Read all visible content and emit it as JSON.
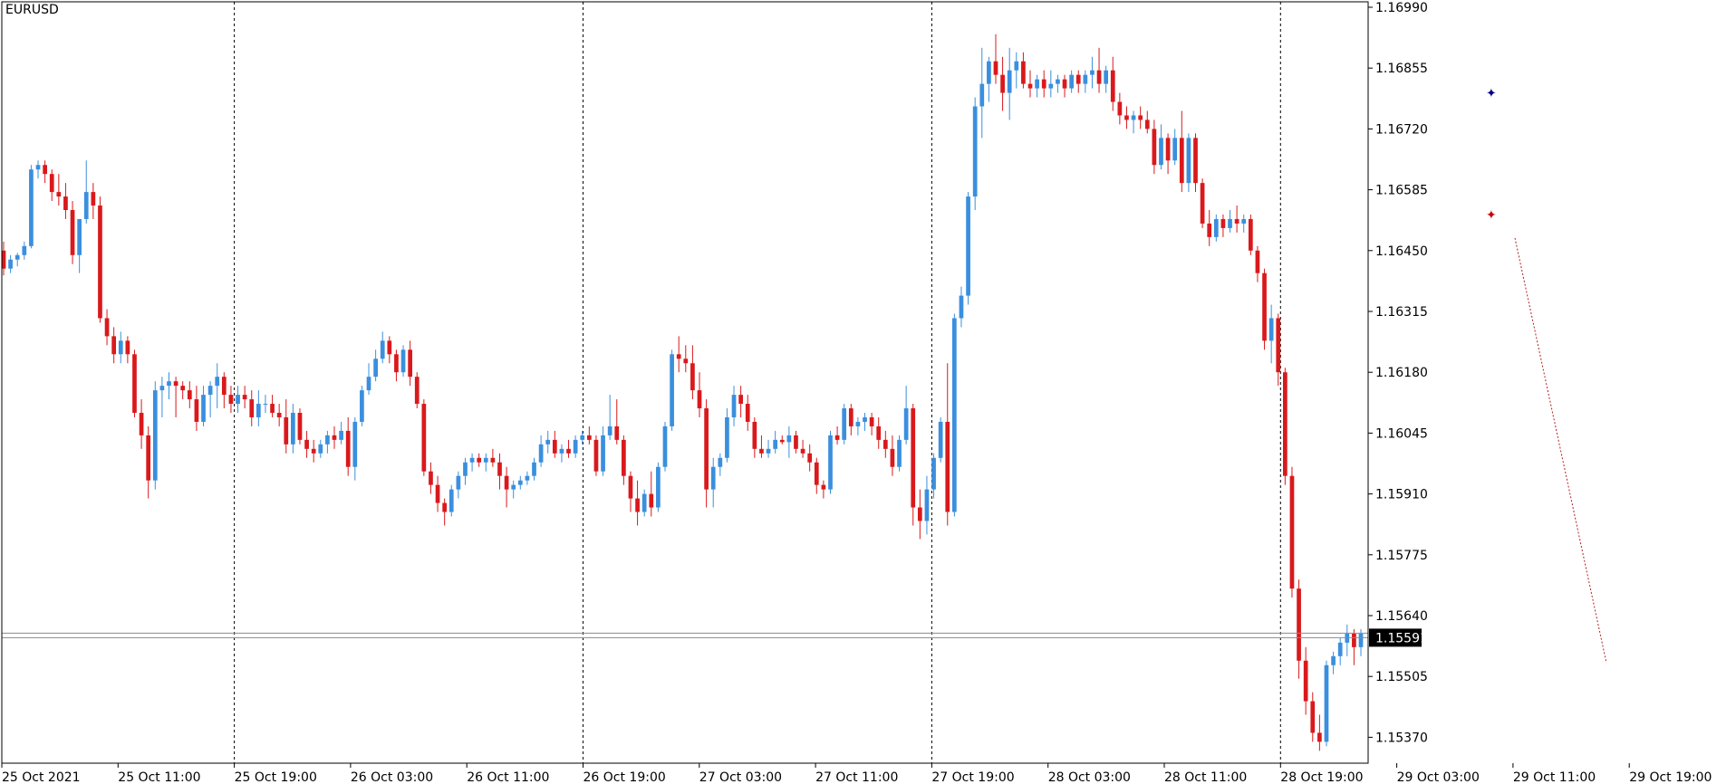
{
  "symbol": "EURUSD",
  "chart_data": {
    "type": "candlestick",
    "ylim": [
      1.153,
      1.1705
    ],
    "y_ticks": [
      "1.16990",
      "1.16855",
      "1.16720",
      "1.16585",
      "1.16450",
      "1.16315",
      "1.16180",
      "1.16045",
      "1.15910",
      "1.15775",
      "1.15640",
      "1.15505",
      "1.15370"
    ],
    "x_tick_labels": [
      "25 Oct 2021",
      "25 Oct 11:00",
      "25 Oct 19:00",
      "26 Oct 03:00",
      "26 Oct 11:00",
      "26 Oct 19:00",
      "27 Oct 03:00",
      "27 Oct 11:00",
      "27 Oct 19:00",
      "28 Oct 03:00",
      "28 Oct 11:00",
      "28 Oct 19:00",
      "29 Oct 03:00",
      "29 Oct 11:00",
      "29 Oct 19:00"
    ],
    "day_separators_after_label_index": [
      2,
      5,
      8,
      11
    ],
    "current_price": "1.15591",
    "bid_ask_lines": [
      1.15601,
      1.15591
    ],
    "colors": {
      "bull": "#3a8fde",
      "bear": "#d9191c",
      "grid": "#000000",
      "price_tag_bg": "#000000",
      "price_tag_fg": "#ffffff",
      "arrow_buy": "#000080",
      "arrow_sell": "#cc0000",
      "trade_line": "#b22222"
    },
    "trade": {
      "entry_price": 1.16478,
      "exit_price": 1.15535
    },
    "candles_ohlc": [
      [
        1.1645,
        1.1647,
        1.16395,
        1.1641
      ],
      [
        1.1641,
        1.1644,
        1.164,
        1.1643
      ],
      [
        1.1643,
        1.16445,
        1.16415,
        1.1644
      ],
      [
        1.1644,
        1.1647,
        1.1643,
        1.1646
      ],
      [
        1.1646,
        1.1664,
        1.16455,
        1.1663
      ],
      [
        1.1663,
        1.1665,
        1.1661,
        1.1664
      ],
      [
        1.1664,
        1.1665,
        1.166,
        1.1662
      ],
      [
        1.1662,
        1.1663,
        1.1656,
        1.1658
      ],
      [
        1.1658,
        1.1662,
        1.1655,
        1.1657
      ],
      [
        1.1657,
        1.166,
        1.1652,
        1.1654
      ],
      [
        1.1654,
        1.1656,
        1.1642,
        1.1644
      ],
      [
        1.1644,
        1.165,
        1.164,
        1.1652
      ],
      [
        1.1652,
        1.1665,
        1.1651,
        1.1658
      ],
      [
        1.1658,
        1.166,
        1.1652,
        1.1655
      ],
      [
        1.1655,
        1.1657,
        1.1629,
        1.163
      ],
      [
        1.163,
        1.1632,
        1.1624,
        1.1626
      ],
      [
        1.1626,
        1.1628,
        1.162,
        1.1622
      ],
      [
        1.1622,
        1.1627,
        1.162,
        1.1625
      ],
      [
        1.1625,
        1.1626,
        1.162,
        1.1622
      ],
      [
        1.1622,
        1.1623,
        1.1608,
        1.1609
      ],
      [
        1.1609,
        1.1612,
        1.1601,
        1.1604
      ],
      [
        1.1604,
        1.1606,
        1.159,
        1.1594
      ],
      [
        1.1594,
        1.1616,
        1.1592,
        1.1614
      ],
      [
        1.1614,
        1.1617,
        1.1608,
        1.1615
      ],
      [
        1.1615,
        1.1618,
        1.1612,
        1.1616
      ],
      [
        1.1616,
        1.1617,
        1.1608,
        1.1615
      ],
      [
        1.1615,
        1.1616,
        1.1612,
        1.1614
      ],
      [
        1.1614,
        1.1616,
        1.161,
        1.1612
      ],
      [
        1.1612,
        1.1615,
        1.1605,
        1.1607
      ],
      [
        1.1607,
        1.1615,
        1.1606,
        1.1613
      ],
      [
        1.1613,
        1.1616,
        1.1608,
        1.1615
      ],
      [
        1.1615,
        1.162,
        1.161,
        1.1617
      ],
      [
        1.1617,
        1.1618,
        1.161,
        1.1613
      ],
      [
        1.1613,
        1.1615,
        1.1609,
        1.1611
      ],
      [
        1.1611,
        1.1615,
        1.1609,
        1.1613
      ],
      [
        1.1613,
        1.1615,
        1.161,
        1.1612
      ],
      [
        1.1612,
        1.1614,
        1.1606,
        1.1608
      ],
      [
        1.1608,
        1.1614,
        1.1606,
        1.1611
      ],
      [
        1.1611,
        1.1613,
        1.1609,
        1.1611
      ],
      [
        1.1611,
        1.1613,
        1.1608,
        1.1609
      ],
      [
        1.1609,
        1.1611,
        1.1606,
        1.1608
      ],
      [
        1.1608,
        1.1612,
        1.16,
        1.1602
      ],
      [
        1.1602,
        1.1611,
        1.16,
        1.1609
      ],
      [
        1.1609,
        1.161,
        1.1602,
        1.1603
      ],
      [
        1.1603,
        1.1605,
        1.1599,
        1.1601
      ],
      [
        1.1601,
        1.1603,
        1.1598,
        1.16
      ],
      [
        1.16,
        1.1603,
        1.1599,
        1.1602
      ],
      [
        1.1602,
        1.1605,
        1.16,
        1.1604
      ],
      [
        1.1604,
        1.1606,
        1.1601,
        1.1603
      ],
      [
        1.1603,
        1.1607,
        1.1602,
        1.1605
      ],
      [
        1.1605,
        1.1608,
        1.1595,
        1.1597
      ],
      [
        1.1597,
        1.1608,
        1.1594,
        1.1607
      ],
      [
        1.1607,
        1.1615,
        1.1606,
        1.1614
      ],
      [
        1.1614,
        1.162,
        1.1613,
        1.1617
      ],
      [
        1.1617,
        1.1623,
        1.1616,
        1.1621
      ],
      [
        1.1621,
        1.1627,
        1.162,
        1.1625
      ],
      [
        1.1625,
        1.1626,
        1.162,
        1.1622
      ],
      [
        1.1622,
        1.1623,
        1.1616,
        1.1618
      ],
      [
        1.1618,
        1.1624,
        1.1617,
        1.1623
      ],
      [
        1.1623,
        1.1625,
        1.1615,
        1.1617
      ],
      [
        1.1617,
        1.1618,
        1.161,
        1.1611
      ],
      [
        1.1611,
        1.1612,
        1.1595,
        1.1596
      ],
      [
        1.1596,
        1.1598,
        1.1591,
        1.1593
      ],
      [
        1.1593,
        1.1595,
        1.1587,
        1.1589
      ],
      [
        1.1589,
        1.159,
        1.1584,
        1.1587
      ],
      [
        1.1587,
        1.1593,
        1.1586,
        1.1592
      ],
      [
        1.1592,
        1.1596,
        1.159,
        1.1595
      ],
      [
        1.1595,
        1.1599,
        1.1593,
        1.1598
      ],
      [
        1.1598,
        1.16,
        1.1596,
        1.1599
      ],
      [
        1.1599,
        1.16,
        1.1597,
        1.1598
      ],
      [
        1.1598,
        1.16,
        1.1596,
        1.1599
      ],
      [
        1.1599,
        1.1601,
        1.1597,
        1.1598
      ],
      [
        1.1598,
        1.16,
        1.1592,
        1.1595
      ],
      [
        1.1595,
        1.1597,
        1.1588,
        1.1592
      ],
      [
        1.1592,
        1.1594,
        1.159,
        1.1593
      ],
      [
        1.1593,
        1.1595,
        1.1592,
        1.1594
      ],
      [
        1.1594,
        1.1596,
        1.1593,
        1.1595
      ],
      [
        1.1595,
        1.1599,
        1.1594,
        1.1598
      ],
      [
        1.1598,
        1.1604,
        1.1597,
        1.1602
      ],
      [
        1.1602,
        1.1605,
        1.16,
        1.1603
      ],
      [
        1.1603,
        1.1605,
        1.1599,
        1.16
      ],
      [
        1.16,
        1.1602,
        1.1598,
        1.1601
      ],
      [
        1.1601,
        1.1603,
        1.1599,
        1.16
      ],
      [
        1.16,
        1.1604,
        1.1599,
        1.1603
      ],
      [
        1.1603,
        1.1605,
        1.1602,
        1.1604
      ],
      [
        1.1604,
        1.1606,
        1.1602,
        1.1603
      ],
      [
        1.1603,
        1.1604,
        1.1595,
        1.1596
      ],
      [
        1.1596,
        1.1606,
        1.1595,
        1.1604
      ],
      [
        1.1604,
        1.1613,
        1.1603,
        1.1606
      ],
      [
        1.1606,
        1.1612,
        1.1602,
        1.1603
      ],
      [
        1.1603,
        1.1604,
        1.1593,
        1.1595
      ],
      [
        1.1595,
        1.1596,
        1.1587,
        1.159
      ],
      [
        1.159,
        1.1594,
        1.1584,
        1.1587
      ],
      [
        1.1587,
        1.1592,
        1.1586,
        1.1591
      ],
      [
        1.1591,
        1.1596,
        1.1586,
        1.1588
      ],
      [
        1.1588,
        1.1598,
        1.1587,
        1.1597
      ],
      [
        1.1597,
        1.1607,
        1.1596,
        1.1606
      ],
      [
        1.1606,
        1.1623,
        1.1605,
        1.1622
      ],
      [
        1.1622,
        1.1626,
        1.1618,
        1.1621
      ],
      [
        1.1621,
        1.1624,
        1.1618,
        1.162
      ],
      [
        1.162,
        1.1624,
        1.1612,
        1.1614
      ],
      [
        1.1614,
        1.1618,
        1.1608,
        1.161
      ],
      [
        1.161,
        1.1612,
        1.1588,
        1.1592
      ],
      [
        1.1592,
        1.1599,
        1.1588,
        1.1597
      ],
      [
        1.1597,
        1.16,
        1.1595,
        1.1599
      ],
      [
        1.1599,
        1.161,
        1.1598,
        1.1608
      ],
      [
        1.1608,
        1.1615,
        1.1606,
        1.1613
      ],
      [
        1.1613,
        1.1615,
        1.1608,
        1.1611
      ],
      [
        1.1611,
        1.1613,
        1.1605,
        1.1607
      ],
      [
        1.1607,
        1.1608,
        1.1599,
        1.1601
      ],
      [
        1.1601,
        1.1604,
        1.1599,
        1.16
      ],
      [
        1.16,
        1.1603,
        1.1599,
        1.1601
      ],
      [
        1.1601,
        1.1605,
        1.16,
        1.1603
      ],
      [
        1.1603,
        1.1604,
        1.1602,
        1.16025
      ],
      [
        1.16025,
        1.1606,
        1.1599,
        1.1604
      ],
      [
        1.1604,
        1.1605,
        1.16,
        1.1601
      ],
      [
        1.1601,
        1.1603,
        1.1599,
        1.16
      ],
      [
        1.16,
        1.1602,
        1.1596,
        1.1598
      ],
      [
        1.1598,
        1.1599,
        1.1591,
        1.1593
      ],
      [
        1.1593,
        1.1594,
        1.159,
        1.1592
      ],
      [
        1.1592,
        1.1605,
        1.1591,
        1.1604
      ],
      [
        1.1604,
        1.1606,
        1.1602,
        1.1603
      ],
      [
        1.1603,
        1.1611,
        1.1602,
        1.161
      ],
      [
        1.161,
        1.1611,
        1.1604,
        1.1606
      ],
      [
        1.1606,
        1.1608,
        1.1604,
        1.1607
      ],
      [
        1.1607,
        1.1609,
        1.1605,
        1.1608
      ],
      [
        1.1608,
        1.1609,
        1.1604,
        1.1606
      ],
      [
        1.1606,
        1.1608,
        1.1601,
        1.1603
      ],
      [
        1.1603,
        1.1605,
        1.1599,
        1.1601
      ],
      [
        1.1601,
        1.1604,
        1.1595,
        1.1597
      ],
      [
        1.1597,
        1.1604,
        1.1596,
        1.1603
      ],
      [
        1.1603,
        1.1615,
        1.1602,
        1.161
      ],
      [
        1.161,
        1.1611,
        1.1584,
        1.1588
      ],
      [
        1.1588,
        1.1592,
        1.1581,
        1.1585
      ],
      [
        1.1585,
        1.1595,
        1.1582,
        1.1592
      ],
      [
        1.1592,
        1.16,
        1.159,
        1.1599
      ],
      [
        1.1599,
        1.1608,
        1.1598,
        1.1607
      ],
      [
        1.1607,
        1.162,
        1.1584,
        1.1587
      ],
      [
        1.1587,
        1.1631,
        1.1586,
        1.163
      ],
      [
        1.163,
        1.1637,
        1.1628,
        1.1635
      ],
      [
        1.1635,
        1.1658,
        1.1633,
        1.1657
      ],
      [
        1.1657,
        1.1679,
        1.1654,
        1.1677
      ],
      [
        1.1677,
        1.169,
        1.167,
        1.1682
      ],
      [
        1.1682,
        1.1688,
        1.1678,
        1.1687
      ],
      [
        1.1687,
        1.1693,
        1.1682,
        1.1684
      ],
      [
        1.1684,
        1.1688,
        1.1676,
        1.168
      ],
      [
        1.168,
        1.169,
        1.1674,
        1.1685
      ],
      [
        1.1685,
        1.1689,
        1.1681,
        1.1687
      ],
      [
        1.1687,
        1.1689,
        1.1681,
        1.1682
      ],
      [
        1.1682,
        1.1685,
        1.1679,
        1.1681
      ],
      [
        1.1681,
        1.1684,
        1.1679,
        1.1683
      ],
      [
        1.1683,
        1.1685,
        1.1679,
        1.1681
      ],
      [
        1.1681,
        1.1685,
        1.1679,
        1.1682
      ],
      [
        1.1682,
        1.1684,
        1.168,
        1.1683
      ],
      [
        1.1683,
        1.1684,
        1.1679,
        1.1681
      ],
      [
        1.1681,
        1.1685,
        1.168,
        1.1684
      ],
      [
        1.1684,
        1.1685,
        1.168,
        1.1682
      ],
      [
        1.1682,
        1.1685,
        1.168,
        1.1684
      ],
      [
        1.1684,
        1.1688,
        1.1681,
        1.1685
      ],
      [
        1.1685,
        1.169,
        1.168,
        1.1682
      ],
      [
        1.1682,
        1.1686,
        1.168,
        1.1685
      ],
      [
        1.1685,
        1.1688,
        1.1676,
        1.1678
      ],
      [
        1.1678,
        1.168,
        1.1673,
        1.1675
      ],
      [
        1.1675,
        1.1677,
        1.1672,
        1.1674
      ],
      [
        1.1674,
        1.1676,
        1.1671,
        1.1675
      ],
      [
        1.1675,
        1.1677,
        1.1672,
        1.1674
      ],
      [
        1.1674,
        1.1676,
        1.1671,
        1.1672
      ],
      [
        1.1672,
        1.1674,
        1.1662,
        1.1664
      ],
      [
        1.1664,
        1.1673,
        1.1663,
        1.167
      ],
      [
        1.167,
        1.1671,
        1.1662,
        1.1665
      ],
      [
        1.1665,
        1.1672,
        1.1664,
        1.167
      ],
      [
        1.167,
        1.1676,
        1.1658,
        1.166
      ],
      [
        1.166,
        1.1671,
        1.1658,
        1.167
      ],
      [
        1.167,
        1.1671,
        1.1658,
        1.166
      ],
      [
        1.166,
        1.1661,
        1.165,
        1.1651
      ],
      [
        1.1651,
        1.1654,
        1.1646,
        1.1648
      ],
      [
        1.1648,
        1.1653,
        1.1647,
        1.1652
      ],
      [
        1.1652,
        1.1653,
        1.1648,
        1.165
      ],
      [
        1.165,
        1.1654,
        1.1649,
        1.1652
      ],
      [
        1.1652,
        1.1655,
        1.1649,
        1.1651
      ],
      [
        1.1651,
        1.1653,
        1.1649,
        1.1652
      ],
      [
        1.1652,
        1.1653,
        1.1644,
        1.1645
      ],
      [
        1.1645,
        1.1646,
        1.1638,
        1.164
      ],
      [
        1.164,
        1.1641,
        1.1623,
        1.1625
      ],
      [
        1.1625,
        1.1633,
        1.162,
        1.163
      ],
      [
        1.163,
        1.1631,
        1.1615,
        1.1618
      ],
      [
        1.1618,
        1.1619,
        1.1593,
        1.1595
      ],
      [
        1.1595,
        1.1597,
        1.1568,
        1.157
      ],
      [
        1.157,
        1.1572,
        1.155,
        1.1554
      ],
      [
        1.1554,
        1.1557,
        1.1542,
        1.1545
      ],
      [
        1.1545,
        1.1547,
        1.1536,
        1.1538
      ],
      [
        1.1538,
        1.1542,
        1.1534,
        1.1536
      ],
      [
        1.1536,
        1.1554,
        1.1535,
        1.1553
      ],
      [
        1.1553,
        1.1556,
        1.1551,
        1.1555
      ],
      [
        1.1555,
        1.1559,
        1.1553,
        1.1558
      ],
      [
        1.1558,
        1.1562,
        1.1555,
        1.156
      ],
      [
        1.156,
        1.1561,
        1.1553,
        1.1557
      ],
      [
        1.1557,
        1.1561,
        1.1555,
        1.156
      ]
    ]
  }
}
